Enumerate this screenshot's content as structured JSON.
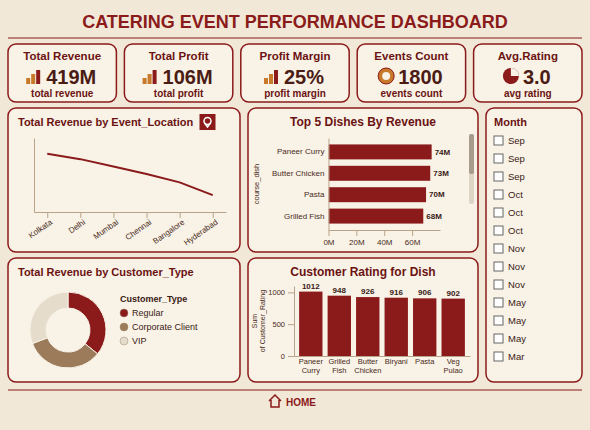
{
  "header": {
    "title": "CATERING EVENT PERFORMANCE DASHBOARD"
  },
  "kpis": [
    {
      "title": "Total Revenue",
      "value": "419M",
      "subtitle": "total revenue"
    },
    {
      "title": "Total Profit",
      "value": "106M",
      "subtitle": "total profit"
    },
    {
      "title": "Profit Margin",
      "value": "25%",
      "subtitle": "profit margin"
    },
    {
      "title": "Events Count",
      "value": "1800",
      "subtitle": "events count"
    },
    {
      "title": "Avg.Rating",
      "value": "3.0",
      "subtitle": "avg rating"
    }
  ],
  "chart_data": [
    {
      "type": "line",
      "title": "Total Revenue by Event_Location",
      "categories": [
        "Kolkata",
        "Delhi",
        "Mumbai",
        "Chennai",
        "Bangalore",
        "Hyderabad"
      ],
      "values": [
        71.5,
        71.0,
        70.3,
        69.6,
        68.8,
        67.6
      ],
      "color": "#8B1A1A",
      "ylim": [
        66,
        73
      ],
      "tick_labels": "x"
    },
    {
      "type": "bar",
      "orientation": "horizontal",
      "title": "Top 5 Dishes By Revenue",
      "y_label": "course_dish",
      "categories": [
        "Paneer Curry",
        "Butter Chicken",
        "Pasta",
        "Grilled Fish"
      ],
      "values": [
        74,
        73,
        70,
        68
      ],
      "value_labels": [
        "74M",
        "73M",
        "70M",
        "68M"
      ],
      "data_labels": true,
      "color": "#8B1A1A",
      "xlim": [
        0,
        80
      ],
      "xticks": [
        {
          "value": 0,
          "label": "0M"
        },
        {
          "value": 20,
          "label": "20M"
        },
        {
          "value": 40,
          "label": "40M"
        },
        {
          "value": 60,
          "label": "60M"
        }
      ]
    },
    {
      "type": "donut",
      "title": "Total Revenue by Customer_Type",
      "legend_title": "Customer_Type",
      "categories": [
        "Regular",
        "Corporate Client",
        "VIP"
      ],
      "values": [
        150,
        140,
        129
      ],
      "colors": [
        "#8B1A1A",
        "#9C7B5B",
        "#E6DCCB"
      ],
      "legend": "right"
    },
    {
      "type": "bar",
      "title": "Customer Rating for Dish",
      "y_label": "Sum of Customer_Rating",
      "categories": [
        "Paneer Curry",
        "Grilled Fish",
        "Butter Chicken",
        "Biryani",
        "Pasta",
        "Veg Pulao"
      ],
      "values": [
        1012,
        948,
        926,
        916,
        906,
        902
      ],
      "data_labels": true,
      "color": "#8B1A1A",
      "ylim": [
        0,
        1100
      ],
      "yticks": [
        0,
        500,
        1000
      ]
    }
  ],
  "slicer": {
    "title": "Month",
    "items": [
      "Sep",
      "Sep",
      "Sep",
      "Oct",
      "Oct",
      "Oct",
      "Nov",
      "Nov",
      "Nov",
      "May",
      "May",
      "May",
      "Mar"
    ]
  },
  "footer": {
    "label": "HOME"
  }
}
